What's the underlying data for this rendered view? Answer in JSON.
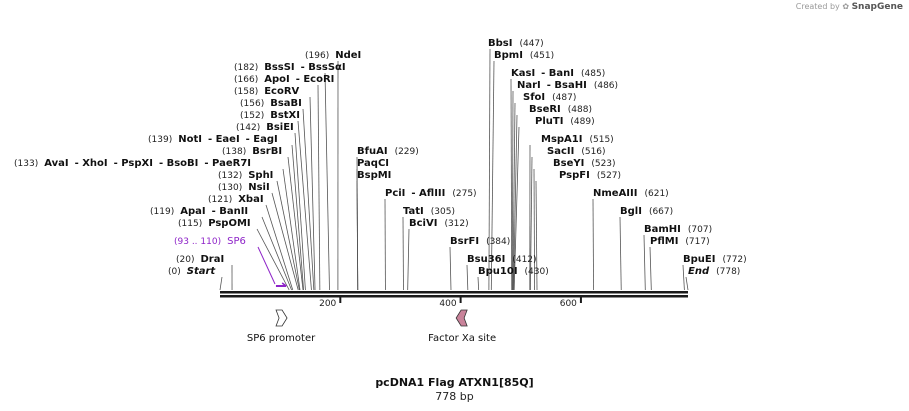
{
  "branding": {
    "created_by": "Created by",
    "product": "SnapGene"
  },
  "plasmid": {
    "name": "pcDNA1 Flag ATXN1[85Q]",
    "length_label": "778 bp",
    "length_bp": 778
  },
  "colors": {
    "backbone": "#1a1a1a",
    "label_line": "#555555",
    "sp6_primer": "#8e24c8",
    "sp6_promoter_fill": "#ffffff",
    "factor_xa_fill": "#c9839a"
  },
  "ruler": [
    {
      "label": "200",
      "bp": 200
    },
    {
      "label": "400",
      "bp": 400
    },
    {
      "label": "600",
      "bp": 600
    }
  ],
  "sites": [
    {
      "segments": [
        {
          "t": "(196)",
          "b": false
        },
        {
          "t": "NdeI",
          "b": true
        }
      ],
      "bp": 196
    },
    {
      "segments": [
        {
          "t": "(182)",
          "b": false
        },
        {
          "t": "BssSI",
          "b": true
        },
        {
          "t": "- BssSαI",
          "b": true
        }
      ],
      "bp": 182
    },
    {
      "segments": [
        {
          "t": "(166)",
          "b": false
        },
        {
          "t": "ApoI",
          "b": true
        },
        {
          "t": "- EcoRI",
          "b": true
        }
      ],
      "bp": 166
    },
    {
      "segments": [
        {
          "t": "(158)",
          "b": false
        },
        {
          "t": "EcoRV",
          "b": true
        }
      ],
      "bp": 158
    },
    {
      "segments": [
        {
          "t": "(156)",
          "b": false
        },
        {
          "t": "BsaBI",
          "b": true
        }
      ],
      "bp": 156
    },
    {
      "segments": [
        {
          "t": "(152)",
          "b": false
        },
        {
          "t": "BstXI",
          "b": true
        }
      ],
      "bp": 152
    },
    {
      "segments": [
        {
          "t": "(142)",
          "b": false
        },
        {
          "t": "BsiEI",
          "b": true
        }
      ],
      "bp": 142
    },
    {
      "segments": [
        {
          "t": "(139)",
          "b": false
        },
        {
          "t": "NotI",
          "b": true
        },
        {
          "t": "- EaeI",
          "b": true
        },
        {
          "t": "- EagI",
          "b": true
        }
      ],
      "bp": 139
    },
    {
      "segments": [
        {
          "t": "(138)",
          "b": false
        },
        {
          "t": "BsrBI",
          "b": true
        }
      ],
      "bp": 138
    },
    {
      "segments": [
        {
          "t": "(133)",
          "b": false
        },
        {
          "t": "AvaI",
          "b": true
        },
        {
          "t": "- XhoI",
          "b": true
        },
        {
          "t": "- PspXI",
          "b": true
        },
        {
          "t": "- BsoBI",
          "b": true
        },
        {
          "t": "- PaeR7I",
          "b": true
        }
      ],
      "bp": 133
    },
    {
      "segments": [
        {
          "t": "(132)",
          "b": false
        },
        {
          "t": "SphI",
          "b": true
        }
      ],
      "bp": 132
    },
    {
      "segments": [
        {
          "t": "(130)",
          "b": false
        },
        {
          "t": "NsiI",
          "b": true
        }
      ],
      "bp": 130
    },
    {
      "segments": [
        {
          "t": "(121)",
          "b": false
        },
        {
          "t": "XbaI",
          "b": true
        }
      ],
      "bp": 121
    },
    {
      "segments": [
        {
          "t": "(119)",
          "b": false
        },
        {
          "t": "ApaI",
          "b": true
        },
        {
          "t": "- BanII",
          "b": true
        }
      ],
      "bp": 119
    },
    {
      "segments": [
        {
          "t": "(115)",
          "b": false
        },
        {
          "t": "PspOMI",
          "b": true
        }
      ],
      "bp": 115
    },
    {
      "segments": [
        {
          "t": "(20)",
          "b": false
        },
        {
          "t": "DraI",
          "b": true
        }
      ],
      "bp": 20
    },
    {
      "segments": [
        {
          "t": "(0)",
          "b": false
        },
        {
          "t": "Start",
          "b": true,
          "i": true
        }
      ],
      "bp": 0
    },
    {
      "segments": [
        {
          "t": "BfuAI",
          "b": true
        },
        {
          "t": "(229)",
          "b": false
        }
      ],
      "bp": 229
    },
    {
      "segments": [
        {
          "t": "PaqCI",
          "b": true
        }
      ],
      "bp": 229
    },
    {
      "segments": [
        {
          "t": "BspMI",
          "b": true
        }
      ],
      "bp": 229
    },
    {
      "segments": [
        {
          "t": "PciI",
          "b": true
        },
        {
          "t": "- AflIII",
          "b": true
        },
        {
          "t": "(275)",
          "b": false
        }
      ],
      "bp": 275
    },
    {
      "segments": [
        {
          "t": "TatI",
          "b": true
        },
        {
          "t": "(305)",
          "b": false
        }
      ],
      "bp": 305
    },
    {
      "segments": [
        {
          "t": "BciVI",
          "b": true
        },
        {
          "t": "(312)",
          "b": false
        }
      ],
      "bp": 312
    },
    {
      "segments": [
        {
          "t": "BsrFI",
          "b": true
        },
        {
          "t": "(384)",
          "b": false
        }
      ],
      "bp": 384
    },
    {
      "segments": [
        {
          "t": "Bsu36I",
          "b": true
        },
        {
          "t": "(412)",
          "b": false
        }
      ],
      "bp": 412
    },
    {
      "segments": [
        {
          "t": "Bpu10I",
          "b": true
        },
        {
          "t": "(430)",
          "b": false
        }
      ],
      "bp": 430
    },
    {
      "segments": [
        {
          "t": "BbsI",
          "b": true
        },
        {
          "t": "(447)",
          "b": false
        }
      ],
      "bp": 447
    },
    {
      "segments": [
        {
          "t": "BpmI",
          "b": true
        },
        {
          "t": "(451)",
          "b": false
        }
      ],
      "bp": 451
    },
    {
      "segments": [
        {
          "t": "KasI",
          "b": true
        },
        {
          "t": "- BanI",
          "b": true
        },
        {
          "t": "(485)",
          "b": false
        }
      ],
      "bp": 485
    },
    {
      "segments": [
        {
          "t": "NarI",
          "b": true
        },
        {
          "t": "- BsaHI",
          "b": true
        },
        {
          "t": "(486)",
          "b": false
        }
      ],
      "bp": 486
    },
    {
      "segments": [
        {
          "t": "SfoI",
          "b": true
        },
        {
          "t": "(487)",
          "b": false
        }
      ],
      "bp": 487
    },
    {
      "segments": [
        {
          "t": "BseRI",
          "b": true
        },
        {
          "t": "(488)",
          "b": false
        }
      ],
      "bp": 488
    },
    {
      "segments": [
        {
          "t": "PluTI",
          "b": true
        },
        {
          "t": "(489)",
          "b": false
        }
      ],
      "bp": 489
    },
    {
      "segments": [
        {
          "t": "MspA1I",
          "b": true
        },
        {
          "t": "(515)",
          "b": false
        }
      ],
      "bp": 515
    },
    {
      "segments": [
        {
          "t": "SacII",
          "b": true
        },
        {
          "t": "(516)",
          "b": false
        }
      ],
      "bp": 516
    },
    {
      "segments": [
        {
          "t": "BseYI",
          "b": true
        },
        {
          "t": "(523)",
          "b": false
        }
      ],
      "bp": 523
    },
    {
      "segments": [
        {
          "t": "PspFI",
          "b": true
        },
        {
          "t": "(527)",
          "b": false
        }
      ],
      "bp": 527
    },
    {
      "segments": [
        {
          "t": "NmeAIII",
          "b": true
        },
        {
          "t": "(621)",
          "b": false
        }
      ],
      "bp": 621
    },
    {
      "segments": [
        {
          "t": "BglI",
          "b": true
        },
        {
          "t": "(667)",
          "b": false
        }
      ],
      "bp": 667
    },
    {
      "segments": [
        {
          "t": "BamHI",
          "b": true
        },
        {
          "t": "(707)",
          "b": false
        }
      ],
      "bp": 707
    },
    {
      "segments": [
        {
          "t": "PflMI",
          "b": true
        },
        {
          "t": "(717)",
          "b": false
        }
      ],
      "bp": 717
    },
    {
      "segments": [
        {
          "t": "BpuEI",
          "b": true
        },
        {
          "t": "(772)",
          "b": false
        }
      ],
      "bp": 772
    },
    {
      "segments": [
        {
          "t": "End",
          "b": true,
          "i": true
        },
        {
          "t": "(778)",
          "b": false
        }
      ],
      "bp": 778
    }
  ],
  "primer": {
    "range": "(93 .. 110)",
    "name": "SP6",
    "start_bp": 93,
    "end_bp": 110
  },
  "features": [
    {
      "name": "SP6 promoter",
      "shape": "arrow-right",
      "start_bp": 93,
      "end_bp": 110
    },
    {
      "name": "Factor Xa site",
      "shape": "arrow-left",
      "start_bp": 397,
      "end_bp": 408
    }
  ]
}
